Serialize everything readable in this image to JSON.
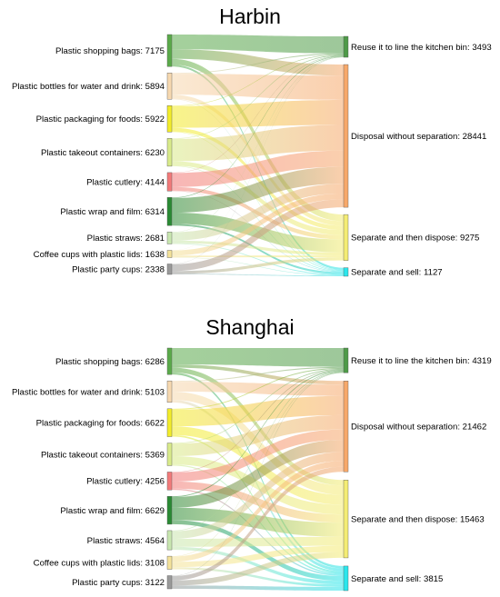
{
  "panels": [
    {
      "title": "Harbin",
      "sources": [
        {
          "name": "Plastic shopping bags",
          "value": 7175,
          "color": "#5aaa4a"
        },
        {
          "name": "Plastic bottles for water and drink",
          "value": 5894,
          "color": "#f6d8b0"
        },
        {
          "name": "Plastic packaging for foods",
          "value": 5922,
          "color": "#f2ec2a"
        },
        {
          "name": "Plastic takeout containers",
          "value": 6230,
          "color": "#d8ea8a"
        },
        {
          "name": "Plastic cutlery",
          "value": 4144,
          "color": "#f27a7a"
        },
        {
          "name": "Plastic wrap and film",
          "value": 6314,
          "color": "#2a8a34"
        },
        {
          "name": "Plastic straws",
          "value": 2681,
          "color": "#c8e6b0"
        },
        {
          "name": "Coffee cups with plastic lids",
          "value": 1638,
          "color": "#f4e29a"
        },
        {
          "name": "Plastic party cups",
          "value": 2338,
          "color": "#9a9a9a"
        }
      ],
      "targets": [
        {
          "name": "Reuse it to line the kitchen bin",
          "value": 3493,
          "color": "#4e9a48"
        },
        {
          "name": "Disposal without separation",
          "value": 28441,
          "color": "#f7a86a"
        },
        {
          "name": "Separate and then dispose",
          "value": 9275,
          "color": "#f4ec74"
        },
        {
          "name": "Separate and sell",
          "value": 1127,
          "color": "#2ae6ec"
        }
      ]
    },
    {
      "title": "Shanghai",
      "sources": [
        {
          "name": "Plastic shopping bags",
          "value": 6286,
          "color": "#5aaa4a"
        },
        {
          "name": "Plastic bottles for water and drink",
          "value": 5103,
          "color": "#f6d8b0"
        },
        {
          "name": "Plastic packaging for foods",
          "value": 6622,
          "color": "#f2ec2a"
        },
        {
          "name": "Plastic takeout containers",
          "value": 5369,
          "color": "#d8ea8a"
        },
        {
          "name": "Plastic cutlery",
          "value": 4256,
          "color": "#f27a7a"
        },
        {
          "name": "Plastic wrap and film",
          "value": 6629,
          "color": "#2a8a34"
        },
        {
          "name": "Plastic straws",
          "value": 4564,
          "color": "#c8e6b0"
        },
        {
          "name": "Coffee cups with plastic lids",
          "value": 3108,
          "color": "#f4e29a"
        },
        {
          "name": "Plastic party cups",
          "value": 3122,
          "color": "#9a9a9a"
        }
      ],
      "targets": [
        {
          "name": "Reuse it to line the kitchen bin",
          "value": 4319,
          "color": "#4e9a48"
        },
        {
          "name": "Disposal without separation",
          "value": 21462,
          "color": "#f7a86a"
        },
        {
          "name": "Separate and then dispose",
          "value": 15463,
          "color": "#f4ec74"
        },
        {
          "name": "Separate and sell",
          "value": 3815,
          "color": "#2ae6ec"
        }
      ]
    }
  ]
}
